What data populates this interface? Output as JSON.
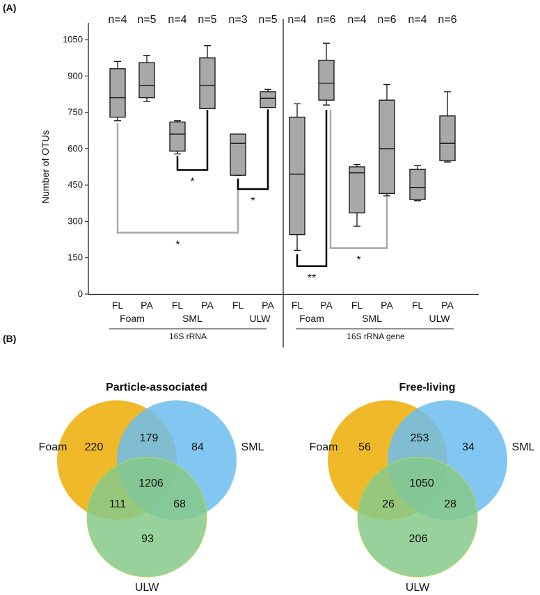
{
  "panel_labels": {
    "a": "(A)",
    "b": "(B)"
  },
  "chart_data": [
    {
      "type": "box",
      "ylabel": "Number of OTUs",
      "ylim": [
        0,
        1100
      ],
      "yticks": [
        0,
        150,
        300,
        450,
        600,
        750,
        900,
        1050
      ],
      "panels": [
        {
          "label": "16S rRNA",
          "groups": [
            {
              "cat": "FL",
              "sample": "Foam",
              "n": "n=4",
              "whisker": [
                715,
                960
              ],
              "q": [
                730,
                930
              ],
              "median": 810
            },
            {
              "cat": "PA",
              "sample": "",
              "n": "n=5",
              "whisker": [
                795,
                985
              ],
              "q": [
                810,
                955
              ],
              "median": 860
            },
            {
              "cat": "FL",
              "sample": "SML",
              "n": "n=4",
              "whisker": [
                578,
                715
              ],
              "q": [
                590,
                710
              ],
              "median": 660
            },
            {
              "cat": "PA",
              "sample": "",
              "n": "n=5",
              "whisker": [
                765,
                1025
              ],
              "q": [
                765,
                975
              ],
              "median": 860
            },
            {
              "cat": "FL",
              "sample": "",
              "n": "n=3",
              "whisker": [
                490,
                660
              ],
              "q": [
                490,
                660
              ],
              "median": 622
            },
            {
              "cat": "PA",
              "sample": "ULW",
              "n": "n=5",
              "whisker": [
                770,
                845
              ],
              "q": [
                770,
                835
              ],
              "median": 808
            }
          ],
          "brackets": [
            {
              "from": 0,
              "to": 4,
              "from_top": 705,
              "to_top": 478,
              "base": 253,
              "label": "*",
              "color": "#aaaaaa"
            },
            {
              "from": 2,
              "to": 3,
              "from_top": 570,
              "to_top": 760,
              "base": 512,
              "label": "*",
              "color": "#000000"
            },
            {
              "from": 4,
              "to": 5,
              "from_top": 475,
              "to_top": 762,
              "base": 433,
              "label": "*",
              "color": "#000000"
            }
          ]
        },
        {
          "label": "16S rRNA gene",
          "groups": [
            {
              "cat": "FL",
              "sample": "Foam",
              "n": "n=4",
              "whisker": [
                180,
                785
              ],
              "q": [
                245,
                730
              ],
              "median": 495
            },
            {
              "cat": "PA",
              "sample": "",
              "n": "n=6",
              "whisker": [
                780,
                1035
              ],
              "q": [
                800,
                965
              ],
              "median": 870
            },
            {
              "cat": "FL",
              "sample": "SML",
              "n": "n=4",
              "whisker": [
                280,
                535
              ],
              "q": [
                335,
                525
              ],
              "median": 500
            },
            {
              "cat": "PA",
              "sample": "",
              "n": "n=6",
              "whisker": [
                405,
                865
              ],
              "q": [
                415,
                800
              ],
              "median": 600
            },
            {
              "cat": "FL",
              "sample": "",
              "n": "n=4",
              "whisker": [
                385,
                530
              ],
              "q": [
                390,
                515
              ],
              "median": 440
            },
            {
              "cat": "PA",
              "sample": "ULW",
              "n": "n=6",
              "whisker": [
                545,
                835
              ],
              "q": [
                550,
                735
              ],
              "median": 622
            }
          ],
          "brackets": [
            {
              "from": 0,
              "to": 1,
              "from_top": 165,
              "to_top": 760,
              "base": 115,
              "label": "**",
              "color": "#000000"
            },
            {
              "from": 1,
              "to": 3,
              "from_top": 760,
              "to_top": 400,
              "base": 190,
              "label": "*",
              "color": "#aaaaaa"
            }
          ]
        }
      ]
    },
    {
      "type": "venn",
      "title": "Particle-associated",
      "sets": [
        "Foam",
        "SML",
        "ULW"
      ],
      "regions": {
        "foam": 220,
        "sml": 84,
        "ulw": 93,
        "foam_sml": 179,
        "foam_ulw": 111,
        "sml_ulw": 68,
        "all": 1206
      }
    },
    {
      "type": "venn",
      "title": "Free-living",
      "sets": [
        "Foam",
        "SML",
        "ULW"
      ],
      "regions": {
        "foam": 56,
        "sml": 34,
        "ulw": 206,
        "foam_sml": 253,
        "foam_ulw": 26,
        "sml_ulw": 28,
        "all": 1050
      }
    }
  ],
  "colors": {
    "box": "#a8a8a8",
    "foam": "#f0b929",
    "sml": "#6cbdee",
    "ulw": "#86c98a",
    "gray_bracket": "#aaaaaa"
  }
}
